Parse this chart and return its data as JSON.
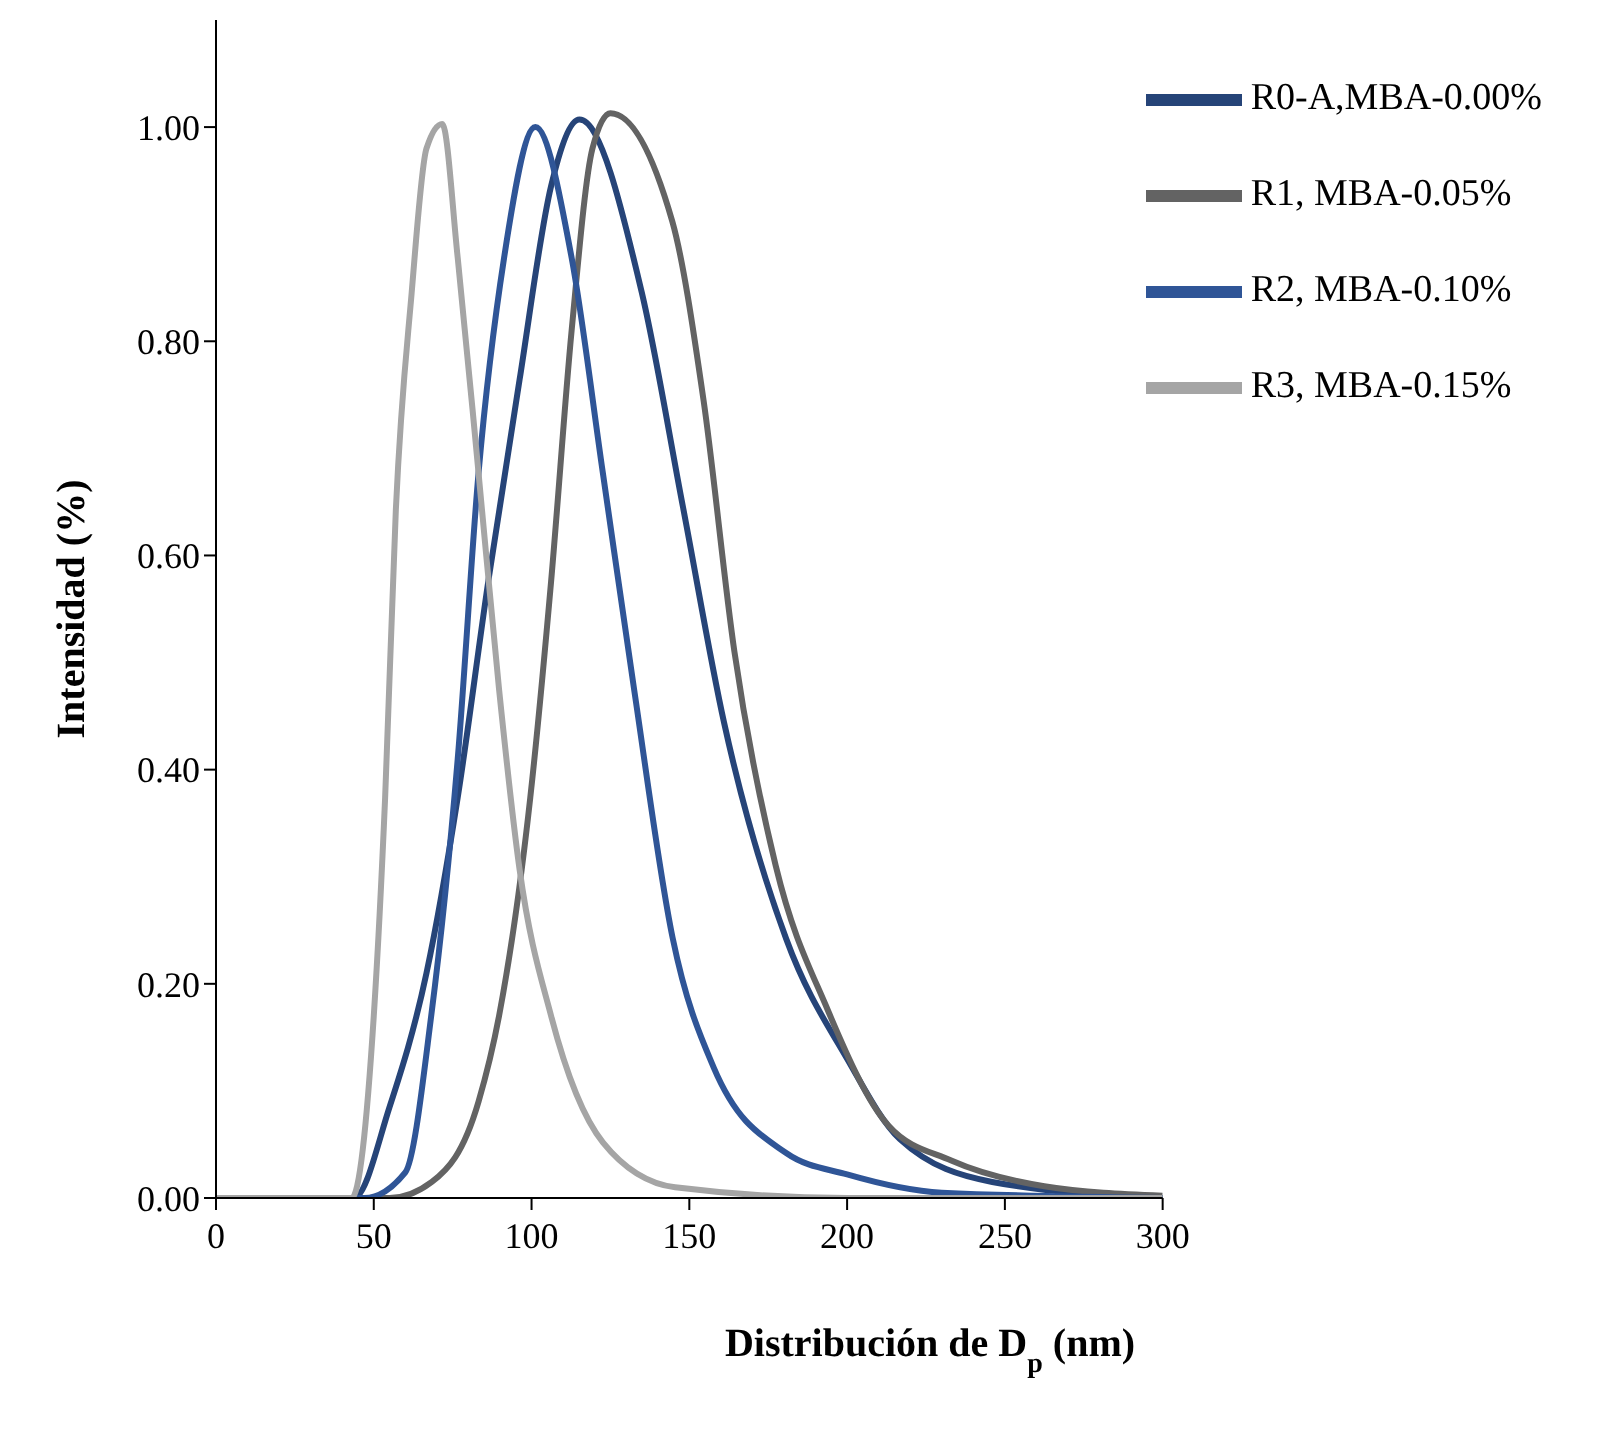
{
  "chart_data": {
    "type": "line",
    "xlabel": "Distribución de D$_{p}$ (nm)",
    "ylabel": "Intensidad (%)",
    "xlim": [
      0,
      300
    ],
    "xticks": [
      0,
      50,
      100,
      150,
      200,
      250,
      300
    ],
    "ylim": [
      0,
      1.1
    ],
    "yticks": [
      {
        "value": 0,
        "label": "0.00"
      },
      {
        "value": 0.2,
        "label": "0.20"
      },
      {
        "value": 0.4,
        "label": "0.40"
      },
      {
        "value": 0.6,
        "label": "0.60"
      },
      {
        "value": 0.8,
        "label": "0.80"
      },
      {
        "value": 1,
        "label": "1.00"
      }
    ],
    "grid": false,
    "legend": "top right",
    "marker": "none",
    "line_style": "solid",
    "series": [
      {
        "name": "R0-A,MBA-0.00%",
        "color": "#264478",
        "x": [
          0,
          43.7,
          55,
          66.7,
          76.6,
          86.3,
          96.2,
          106.2,
          115.2,
          134.9,
          148,
          161,
          180.7,
          200,
          216.7,
          246,
          300
        ],
        "values": [
          0,
          0,
          0.085,
          0.21,
          0.374,
          0.576,
          0.764,
          0.945,
          1.007,
          0.846,
          0.645,
          0.444,
          0.242,
          0.13,
          0.055,
          0.015,
          0
        ]
      },
      {
        "name": "R1, MBA-0.05%",
        "color": "#636363",
        "x": [
          0,
          55,
          68.4,
          83.2,
          89.7,
          99.6,
          106.2,
          112.7,
          119.3,
          125,
          144.6,
          154.5,
          164.3,
          177.4,
          193.8,
          213,
          233,
          262.5,
          300
        ],
        "values": [
          0,
          0,
          0.015,
          0.09,
          0.17,
          0.374,
          0.576,
          0.81,
          0.98,
          1.013,
          0.912,
          0.745,
          0.51,
          0.31,
          0.176,
          0.068,
          0.035,
          0.011,
          0.002
        ]
      },
      {
        "name": "R2, MBA-0.10%",
        "color": "#2f5597",
        "x": [
          0,
          47,
          60,
          68.2,
          76.6,
          83.2,
          91.3,
          101.2,
          112.7,
          122.6,
          132.5,
          144.7,
          157.7,
          180.7,
          200,
          230,
          300
        ],
        "values": [
          0,
          0,
          0.024,
          0.17,
          0.41,
          0.677,
          0.878,
          1.0,
          0.878,
          0.677,
          0.475,
          0.243,
          0.122,
          0.042,
          0.022,
          0.005,
          0
        ]
      },
      {
        "name": "R3, MBA-0.15%",
        "color": "#a5a5a5",
        "x": [
          0,
          43,
          50,
          53.6,
          57,
          62,
          66.7,
          71.7,
          76.6,
          83.2,
          89.7,
          96.2,
          106.2,
          122.6,
          145.5,
          200,
          300
        ],
        "values": [
          0,
          0,
          0.17,
          0.374,
          0.643,
          0.845,
          0.98,
          1.003,
          0.878,
          0.677,
          0.475,
          0.307,
          0.17,
          0.052,
          0.01,
          0,
          0
        ]
      }
    ]
  }
}
